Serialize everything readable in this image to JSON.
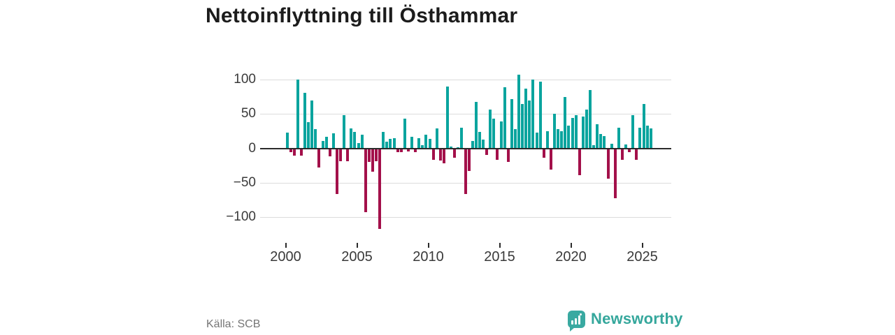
{
  "header": {
    "title": "Nettoinflyttning till Östhammar"
  },
  "footer": {
    "source_label": "Källa: SCB",
    "brand_name": "Newsworthy"
  },
  "colors": {
    "positive_bar": "#0aa49e",
    "negative_bar": "#a3104a",
    "axis": "#2b2b2b",
    "grid": "#dcdcdc",
    "brand_teal": "#35a79c",
    "title_text": "#1c1c1c",
    "tick_text": "#3a3a3a",
    "source_text": "#757575"
  },
  "chart_data": {
    "type": "bar",
    "title": "Nettoinflyttning till Östhammar",
    "x_start": "2000-Q1",
    "frequency": "quarterly",
    "values": [
      23,
      -5,
      -10,
      100,
      -10,
      81,
      38,
      70,
      28,
      -27,
      11,
      17,
      -11,
      22,
      -66,
      -18,
      48,
      -18,
      29,
      24,
      8,
      20,
      -92,
      -19,
      -33,
      -18,
      -117,
      24,
      10,
      14,
      15,
      -5,
      -5,
      43,
      -4,
      17,
      -5,
      15,
      5,
      20,
      14,
      -16,
      29,
      -17,
      -21,
      90,
      3,
      -13,
      2,
      30,
      -66,
      -32,
      11,
      68,
      24,
      13,
      -9,
      57,
      43,
      -16,
      39,
      89,
      -19,
      72,
      28,
      107,
      65,
      87,
      70,
      100,
      23,
      97,
      -13,
      25,
      -30,
      50,
      28,
      25,
      75,
      33,
      44,
      48,
      -38,
      46,
      57,
      85,
      5,
      35,
      21,
      18,
      -43,
      7,
      -72,
      30,
      -16,
      6,
      -5,
      48,
      -16,
      30,
      65,
      33,
      29
    ],
    "ylim": [
      -125,
      115
    ],
    "yticks": [
      100,
      50,
      0,
      -50,
      -100
    ],
    "ytick_labels": [
      "100",
      "50",
      "0",
      "−50",
      "−100"
    ],
    "xticks": [
      2000,
      2005,
      2010,
      2015,
      2020,
      2025
    ],
    "xtick_labels": [
      "2000",
      "2005",
      "2010",
      "2015",
      "2020",
      "2025"
    ],
    "grid": true,
    "legend": "none",
    "xlabel": "",
    "ylabel": ""
  }
}
